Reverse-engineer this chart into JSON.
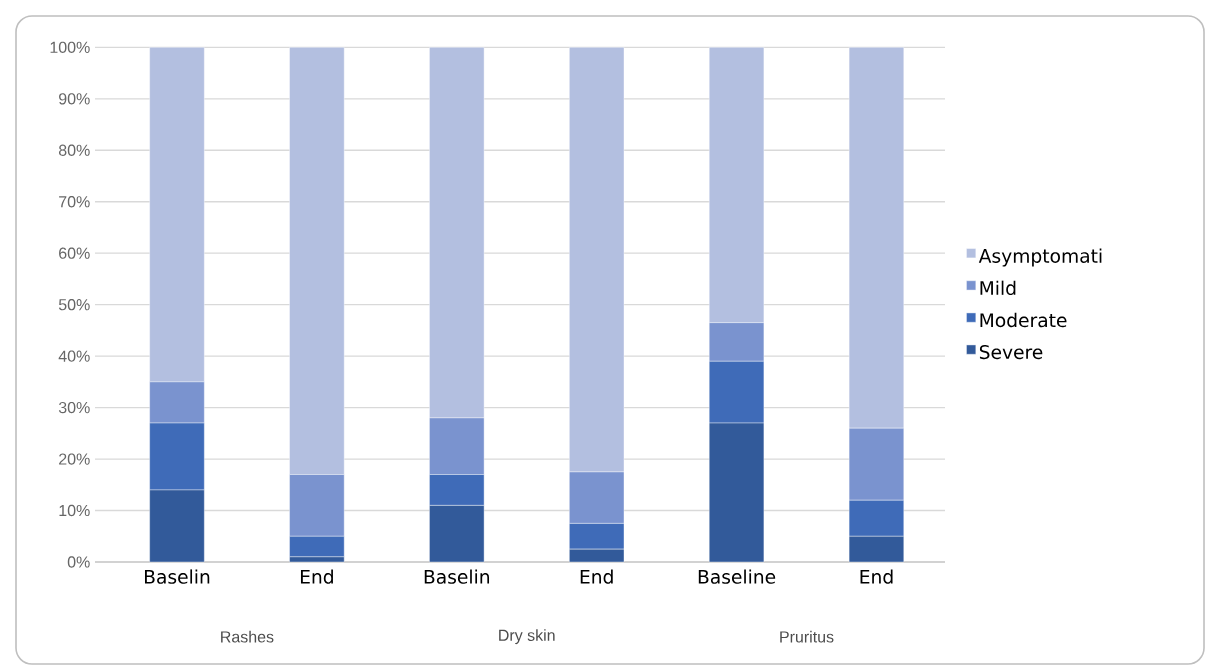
{
  "chart_data": {
    "type": "bar",
    "stacked": true,
    "categories": [
      "Baselin",
      "End",
      "Baselin",
      "End",
      "Baseline",
      "End"
    ],
    "series": [
      {
        "name": "Severe",
        "color": "#325a9a",
        "values": [
          14,
          1,
          11,
          2.5,
          27,
          5
        ]
      },
      {
        "name": "Moderate",
        "color": "#3f6bb8",
        "values": [
          13,
          4,
          6,
          5,
          12,
          7
        ]
      },
      {
        "name": "Mild",
        "color": "#7a93cf",
        "values": [
          8,
          12,
          11,
          10,
          7.5,
          14
        ]
      },
      {
        "name": "Asymptomati",
        "color": "#b3bfe0",
        "values": [
          65,
          83,
          72,
          82.5,
          53.5,
          74
        ]
      }
    ],
    "ylim": [
      0,
      100
    ],
    "yticks": [
      {
        "value": 0,
        "label": "0%"
      },
      {
        "value": 10,
        "label": "10%"
      },
      {
        "value": 20,
        "label": "20%"
      },
      {
        "value": 30,
        "label": "30%"
      },
      {
        "value": 40,
        "label": "40%"
      },
      {
        "value": 50,
        "label": "50%"
      },
      {
        "value": 60,
        "label": "60%"
      },
      {
        "value": 70,
        "label": "70%"
      },
      {
        "value": 80,
        "label": "80%"
      },
      {
        "value": 90,
        "label": "90%"
      },
      {
        "value": 100,
        "label": "100%"
      }
    ],
    "grid": "y",
    "legend": "right",
    "annotations": [
      "Rashes",
      "Dry skin",
      "Pruritus"
    ]
  }
}
